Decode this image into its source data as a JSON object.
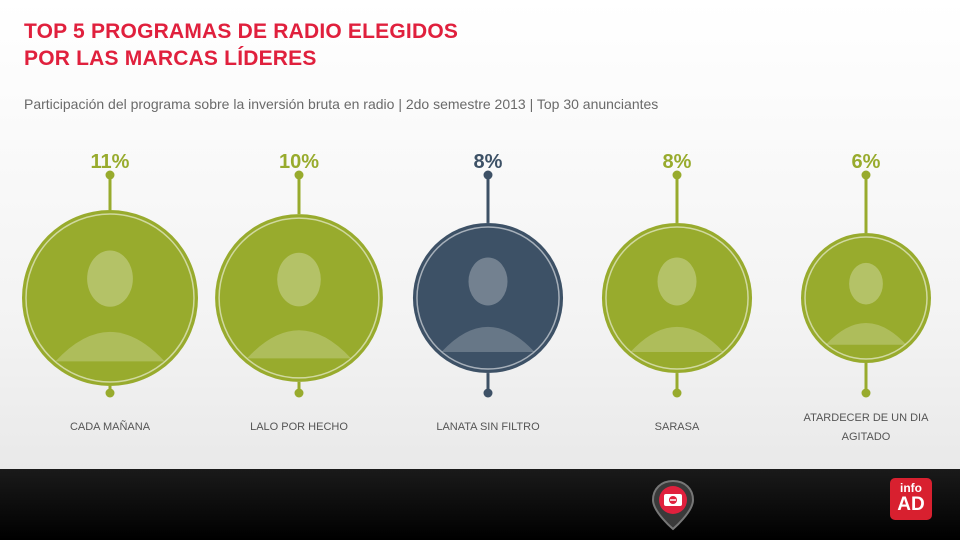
{
  "title_line1": "TOP 5 PROGRAMAS DE RADIO ELEGIDOS",
  "title_line2": "POR LAS MARCAS LÍDERES",
  "subtitle": "Participación del programa sobre la inversión bruta en radio | 2do semestre 2013 | Top 30 anunciantes",
  "colors": {
    "accent_red": "#e0203d",
    "green": "#98ab2d",
    "slate": "#3d5166",
    "footer": "#111111"
  },
  "chart_data": {
    "type": "bar",
    "categories": [
      "CADA MAÑANA",
      "LALO POR HECHO",
      "LANATA SIN FILTRO",
      "SARASA",
      "ATARDECER DE UN DIA AGITADO"
    ],
    "values": [
      11,
      10,
      8,
      8,
      6
    ],
    "value_labels": [
      "11%",
      "10%",
      "8%",
      "8%",
      "6%"
    ],
    "label_lines": [
      [
        "CADA MAÑANA"
      ],
      [
        "LALO POR HECHO"
      ],
      [
        "LANATA SIN FILTRO"
      ],
      [
        "SARASA"
      ],
      [
        "ATARDECER DE UN DIA",
        "AGITADO"
      ]
    ],
    "highlight_index": 2,
    "unit": "%"
  },
  "footer": {
    "pin_icon": "radio-map-pin-icon",
    "logo_line1": "info",
    "logo_line2": "AD"
  }
}
